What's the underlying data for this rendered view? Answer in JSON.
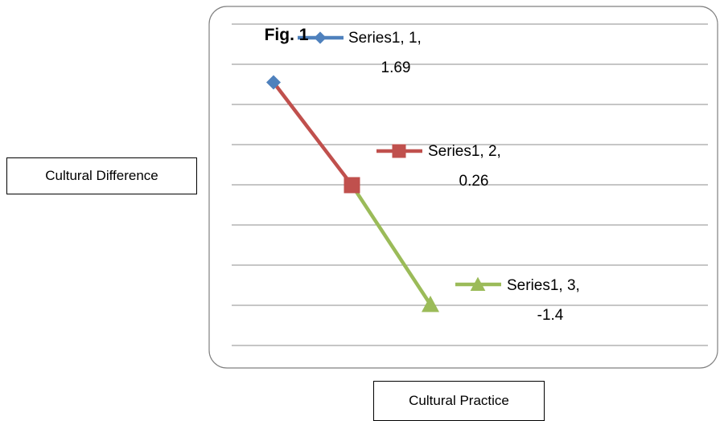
{
  "chart_data": {
    "type": "line",
    "title": "Fig. 1",
    "xlabel": "Cultural Practice",
    "ylabel": "Cultural Difference",
    "x": [
      1,
      2,
      3
    ],
    "values": [
      1.69,
      0.26,
      -1.4
    ],
    "ylim": [
      -1.97,
      2.5
    ],
    "grid": "horizontal",
    "segments": [
      {
        "from": 1,
        "to": 2,
        "color": "#c0504d"
      },
      {
        "from": 2,
        "to": 3,
        "color": "#9bbb59"
      }
    ],
    "series": [
      {
        "marker": "diamond",
        "color": "#4f81bd",
        "label_lines": [
          "Series1, 1,",
          "1.69"
        ]
      },
      {
        "marker": "square",
        "color": "#c0504d",
        "label_lines": [
          "Series1, 2,",
          "0.26"
        ]
      },
      {
        "marker": "triangle",
        "color": "#9bbb59",
        "label_lines": [
          "Series1, 3,",
          "-1.4"
        ]
      }
    ]
  }
}
